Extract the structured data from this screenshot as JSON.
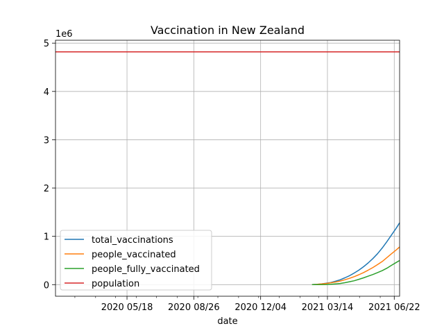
{
  "chart_data": {
    "type": "line",
    "title": "Vaccination in New Zealand",
    "xlabel": "date",
    "ylabel": "",
    "y_offset_label": "1e6",
    "xlim": [
      "2020-02-01",
      "2021-06-30"
    ],
    "ylim": [
      -240000,
      5060000
    ],
    "x_ticks": [
      {
        "date": "2020-05-18",
        "label": "2020 05/18"
      },
      {
        "date": "2020-08-26",
        "label": "2020 08/26"
      },
      {
        "date": "2020-12-04",
        "label": "2020 12/04"
      },
      {
        "date": "2021-03-14",
        "label": "2021 03/14"
      },
      {
        "date": "2021-06-22",
        "label": "2021 06/22"
      }
    ],
    "y_ticks": [
      {
        "value": 0,
        "label": "0"
      },
      {
        "value": 1000000,
        "label": "1"
      },
      {
        "value": 2000000,
        "label": "2"
      },
      {
        "value": 3000000,
        "label": "3"
      },
      {
        "value": 4000000,
        "label": "4"
      },
      {
        "value": 5000000,
        "label": "5"
      }
    ],
    "grid": true,
    "legend_position": "lower-left",
    "series": [
      {
        "name": "total_vaccinations",
        "color": "#1f77b4",
        "points": [
          [
            "2021-02-19",
            0
          ],
          [
            "2021-02-26",
            5000
          ],
          [
            "2021-03-05",
            15000
          ],
          [
            "2021-03-12",
            28000
          ],
          [
            "2021-03-19",
            45000
          ],
          [
            "2021-03-26",
            70000
          ],
          [
            "2021-04-02",
            100000
          ],
          [
            "2021-04-09",
            140000
          ],
          [
            "2021-04-16",
            185000
          ],
          [
            "2021-04-23",
            240000
          ],
          [
            "2021-04-30",
            300000
          ],
          [
            "2021-05-07",
            370000
          ],
          [
            "2021-05-14",
            450000
          ],
          [
            "2021-05-21",
            540000
          ],
          [
            "2021-05-28",
            640000
          ],
          [
            "2021-06-04",
            760000
          ],
          [
            "2021-06-11",
            890000
          ],
          [
            "2021-06-18",
            1030000
          ],
          [
            "2021-06-25",
            1170000
          ],
          [
            "2021-06-30",
            1280000
          ]
        ]
      },
      {
        "name": "people_vaccinated",
        "color": "#ff7f0e",
        "points": [
          [
            "2021-02-19",
            0
          ],
          [
            "2021-02-26",
            5000
          ],
          [
            "2021-03-05",
            14000
          ],
          [
            "2021-03-12",
            25000
          ],
          [
            "2021-03-19",
            38000
          ],
          [
            "2021-03-26",
            55000
          ],
          [
            "2021-04-02",
            75000
          ],
          [
            "2021-04-09",
            100000
          ],
          [
            "2021-04-16",
            130000
          ],
          [
            "2021-04-23",
            165000
          ],
          [
            "2021-04-30",
            205000
          ],
          [
            "2021-05-07",
            250000
          ],
          [
            "2021-05-14",
            300000
          ],
          [
            "2021-05-21",
            355000
          ],
          [
            "2021-05-28",
            415000
          ],
          [
            "2021-06-04",
            480000
          ],
          [
            "2021-06-11",
            560000
          ],
          [
            "2021-06-18",
            640000
          ],
          [
            "2021-06-25",
            720000
          ],
          [
            "2021-06-30",
            780000
          ]
        ]
      },
      {
        "name": "people_fully_vaccinated",
        "color": "#2ca02c",
        "points": [
          [
            "2021-02-19",
            0
          ],
          [
            "2021-03-05",
            1000
          ],
          [
            "2021-03-12",
            3000
          ],
          [
            "2021-03-19",
            7000
          ],
          [
            "2021-03-26",
            15000
          ],
          [
            "2021-04-02",
            25000
          ],
          [
            "2021-04-09",
            40000
          ],
          [
            "2021-04-16",
            60000
          ],
          [
            "2021-04-23",
            80000
          ],
          [
            "2021-04-30",
            110000
          ],
          [
            "2021-05-07",
            140000
          ],
          [
            "2021-05-14",
            175000
          ],
          [
            "2021-05-21",
            210000
          ],
          [
            "2021-05-28",
            250000
          ],
          [
            "2021-06-04",
            290000
          ],
          [
            "2021-06-11",
            340000
          ],
          [
            "2021-06-18",
            400000
          ],
          [
            "2021-06-25",
            460000
          ],
          [
            "2021-06-30",
            500000
          ]
        ]
      },
      {
        "name": "population",
        "color": "#d62728",
        "points": [
          [
            "2020-02-01",
            4820000
          ],
          [
            "2021-06-30",
            4820000
          ]
        ]
      }
    ]
  }
}
